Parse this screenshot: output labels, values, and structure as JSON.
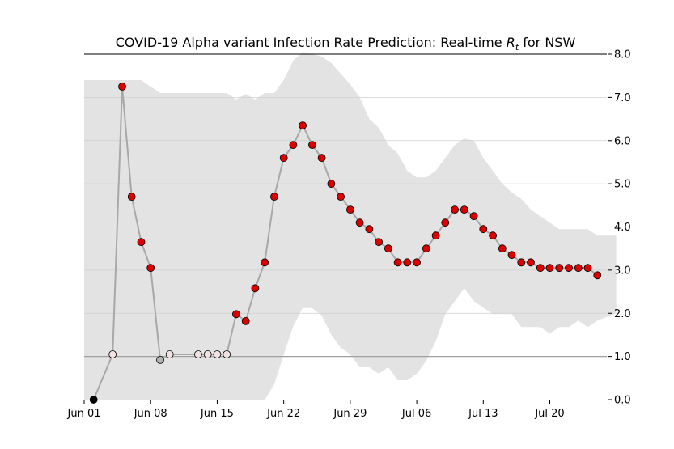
{
  "chart_data": {
    "type": "line",
    "title": "COVID-19 Alpha variant Infection Rate Prediction: Real-time ",
    "title_symbol": "R",
    "title_subscript": "t",
    "title_suffix": " for NSW",
    "x_tick_labels": [
      "Jun 01",
      "Jun 08",
      "Jun 15",
      "Jun 22",
      "Jun 29",
      "Jul 06",
      "Jul 13",
      "Jul 20"
    ],
    "x_tick_days": [
      0,
      7,
      14,
      21,
      28,
      35,
      42,
      49
    ],
    "xlim_days": [
      0,
      55
    ],
    "ylim": [
      0,
      8
    ],
    "y_tick_values": [
      0,
      1,
      2,
      3,
      4,
      5,
      6,
      7,
      8
    ],
    "y_tick_labels": [
      "0.0",
      "1.0",
      "2.0",
      "3.0",
      "4.0",
      "5.0",
      "6.0",
      "7.0",
      "8.0"
    ],
    "y_axis_side": "right",
    "grid": "horizontal",
    "reference_line": 1.0,
    "colors": {
      "line": "#a8a8a8",
      "band": "#e3e3e3",
      "high": "#dd0000",
      "low": "#f2e2e2",
      "mid": "#b3b3b3",
      "zero": "#000000",
      "marker_edge": "#000000"
    },
    "series": [
      {
        "points": [
          {
            "date": "2021-06-02",
            "rt": 0.0,
            "level": "zero"
          },
          {
            "date": "2021-06-04",
            "rt": 1.05,
            "level": "low"
          },
          {
            "date": "2021-06-05",
            "rt": 7.25,
            "level": "high"
          },
          {
            "date": "2021-06-06",
            "rt": 4.7,
            "level": "high"
          },
          {
            "date": "2021-06-07",
            "rt": 3.65,
            "level": "high"
          },
          {
            "date": "2021-06-08",
            "rt": 3.05,
            "level": "high"
          },
          {
            "date": "2021-06-09",
            "rt": 0.92,
            "level": "mid"
          },
          {
            "date": "2021-06-10",
            "rt": 1.05,
            "level": "low"
          },
          {
            "date": "2021-06-13",
            "rt": 1.05,
            "level": "low"
          },
          {
            "date": "2021-06-14",
            "rt": 1.05,
            "level": "low"
          },
          {
            "date": "2021-06-15",
            "rt": 1.05,
            "level": "low"
          },
          {
            "date": "2021-06-16",
            "rt": 1.05,
            "level": "low"
          },
          {
            "date": "2021-06-17",
            "rt": 1.98,
            "level": "high"
          },
          {
            "date": "2021-06-18",
            "rt": 1.82,
            "level": "high"
          },
          {
            "date": "2021-06-19",
            "rt": 2.58,
            "level": "high"
          },
          {
            "date": "2021-06-20",
            "rt": 3.18,
            "level": "high"
          },
          {
            "date": "2021-06-21",
            "rt": 4.7,
            "level": "high"
          },
          {
            "date": "2021-06-22",
            "rt": 5.6,
            "level": "high"
          },
          {
            "date": "2021-06-23",
            "rt": 5.9,
            "level": "high"
          },
          {
            "date": "2021-06-24",
            "rt": 6.35,
            "level": "high"
          },
          {
            "date": "2021-06-25",
            "rt": 5.9,
            "level": "high"
          },
          {
            "date": "2021-06-26",
            "rt": 5.6,
            "level": "high"
          },
          {
            "date": "2021-06-27",
            "rt": 5.0,
            "level": "high"
          },
          {
            "date": "2021-06-28",
            "rt": 4.7,
            "level": "high"
          },
          {
            "date": "2021-06-29",
            "rt": 4.4,
            "level": "high"
          },
          {
            "date": "2021-06-30",
            "rt": 4.1,
            "level": "high"
          },
          {
            "date": "2021-07-01",
            "rt": 3.95,
            "level": "high"
          },
          {
            "date": "2021-07-02",
            "rt": 3.65,
            "level": "high"
          },
          {
            "date": "2021-07-03",
            "rt": 3.5,
            "level": "high"
          },
          {
            "date": "2021-07-04",
            "rt": 3.18,
            "level": "high"
          },
          {
            "date": "2021-07-05",
            "rt": 3.18,
            "level": "high"
          },
          {
            "date": "2021-07-06",
            "rt": 3.18,
            "level": "high"
          },
          {
            "date": "2021-07-07",
            "rt": 3.5,
            "level": "high"
          },
          {
            "date": "2021-07-08",
            "rt": 3.8,
            "level": "high"
          },
          {
            "date": "2021-07-09",
            "rt": 4.1,
            "level": "high"
          },
          {
            "date": "2021-07-10",
            "rt": 4.4,
            "level": "high"
          },
          {
            "date": "2021-07-11",
            "rt": 4.4,
            "level": "high"
          },
          {
            "date": "2021-07-12",
            "rt": 4.25,
            "level": "high"
          },
          {
            "date": "2021-07-13",
            "rt": 3.95,
            "level": "high"
          },
          {
            "date": "2021-07-14",
            "rt": 3.8,
            "level": "high"
          },
          {
            "date": "2021-07-15",
            "rt": 3.5,
            "level": "high"
          },
          {
            "date": "2021-07-16",
            "rt": 3.35,
            "level": "high"
          },
          {
            "date": "2021-07-17",
            "rt": 3.18,
            "level": "high"
          },
          {
            "date": "2021-07-18",
            "rt": 3.18,
            "level": "high"
          },
          {
            "date": "2021-07-19",
            "rt": 3.05,
            "level": "high"
          },
          {
            "date": "2021-07-20",
            "rt": 3.05,
            "level": "high"
          },
          {
            "date": "2021-07-21",
            "rt": 3.05,
            "level": "high"
          },
          {
            "date": "2021-07-22",
            "rt": 3.05,
            "level": "high"
          },
          {
            "date": "2021-07-23",
            "rt": 3.05,
            "level": "high"
          },
          {
            "date": "2021-07-24",
            "rt": 3.05,
            "level": "high"
          },
          {
            "date": "2021-07-25",
            "rt": 2.88,
            "level": "high"
          }
        ]
      }
    ],
    "band": {
      "upper": [
        [
          "2021-06-01",
          7.4
        ],
        [
          "2021-06-07",
          7.4
        ],
        [
          "2021-06-09",
          7.1
        ],
        [
          "2021-06-16",
          7.1
        ],
        [
          "2021-06-17",
          6.95
        ],
        [
          "2021-06-18",
          7.08
        ],
        [
          "2021-06-19",
          6.95
        ],
        [
          "2021-06-20",
          7.1
        ],
        [
          "2021-06-21",
          7.1
        ],
        [
          "2021-06-22",
          7.4
        ],
        [
          "2021-06-23",
          7.85
        ],
        [
          "2021-06-24",
          8.05
        ],
        [
          "2021-06-26",
          7.95
        ],
        [
          "2021-06-27",
          7.8
        ],
        [
          "2021-06-29",
          7.3
        ],
        [
          "2021-06-30",
          7.0
        ],
        [
          "2021-07-01",
          6.5
        ],
        [
          "2021-07-02",
          6.3
        ],
        [
          "2021-07-03",
          5.9
        ],
        [
          "2021-07-04",
          5.7
        ],
        [
          "2021-07-05",
          5.3
        ],
        [
          "2021-07-06",
          5.15
        ],
        [
          "2021-07-07",
          5.15
        ],
        [
          "2021-07-08",
          5.3
        ],
        [
          "2021-07-09",
          5.6
        ],
        [
          "2021-07-10",
          5.9
        ],
        [
          "2021-07-11",
          6.05
        ],
        [
          "2021-07-12",
          6.0
        ],
        [
          "2021-07-13",
          5.6
        ],
        [
          "2021-07-14",
          5.3
        ],
        [
          "2021-07-15",
          5.0
        ],
        [
          "2021-07-16",
          4.8
        ],
        [
          "2021-07-17",
          4.65
        ],
        [
          "2021-07-18",
          4.4
        ],
        [
          "2021-07-19",
          4.25
        ],
        [
          "2021-07-20",
          4.1
        ],
        [
          "2021-07-21",
          3.95
        ],
        [
          "2021-07-22",
          3.95
        ],
        [
          "2021-07-23",
          3.95
        ],
        [
          "2021-07-24",
          3.95
        ],
        [
          "2021-07-25",
          3.8
        ],
        [
          "2021-07-27",
          3.8
        ]
      ],
      "lower": [
        [
          "2021-06-01",
          0.0
        ],
        [
          "2021-06-19",
          0.0
        ],
        [
          "2021-06-20",
          0.0
        ],
        [
          "2021-06-21",
          0.35
        ],
        [
          "2021-06-22",
          1.05
        ],
        [
          "2021-06-23",
          1.7
        ],
        [
          "2021-06-24",
          2.12
        ],
        [
          "2021-06-25",
          2.12
        ],
        [
          "2021-06-26",
          1.95
        ],
        [
          "2021-06-27",
          1.5
        ],
        [
          "2021-06-28",
          1.2
        ],
        [
          "2021-06-29",
          1.05
        ],
        [
          "2021-06-30",
          0.75
        ],
        [
          "2021-07-01",
          0.75
        ],
        [
          "2021-07-02",
          0.6
        ],
        [
          "2021-07-03",
          0.75
        ],
        [
          "2021-07-04",
          0.45
        ],
        [
          "2021-07-05",
          0.45
        ],
        [
          "2021-07-06",
          0.6
        ],
        [
          "2021-07-07",
          0.9
        ],
        [
          "2021-07-08",
          1.35
        ],
        [
          "2021-07-09",
          1.98
        ],
        [
          "2021-07-10",
          2.28
        ],
        [
          "2021-07-11",
          2.58
        ],
        [
          "2021-07-12",
          2.28
        ],
        [
          "2021-07-13",
          2.13
        ],
        [
          "2021-07-14",
          1.98
        ],
        [
          "2021-07-15",
          1.98
        ],
        [
          "2021-07-16",
          1.98
        ],
        [
          "2021-07-17",
          1.68
        ],
        [
          "2021-07-18",
          1.68
        ],
        [
          "2021-07-19",
          1.68
        ],
        [
          "2021-07-20",
          1.53
        ],
        [
          "2021-07-21",
          1.68
        ],
        [
          "2021-07-22",
          1.68
        ],
        [
          "2021-07-23",
          1.83
        ],
        [
          "2021-07-24",
          1.68
        ],
        [
          "2021-07-25",
          1.83
        ],
        [
          "2021-07-27",
          2.0
        ]
      ]
    }
  }
}
